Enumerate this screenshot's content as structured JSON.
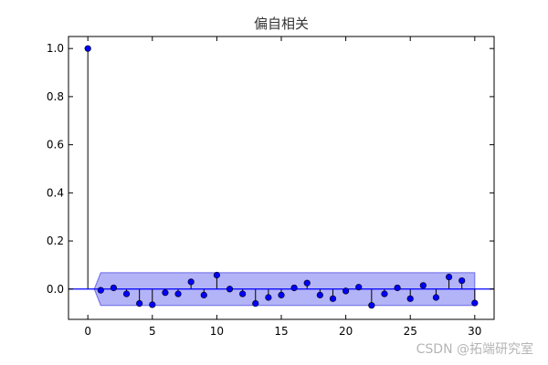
{
  "chart_data": {
    "type": "scatter",
    "style": "stem",
    "title": "偏自相关",
    "xlabel": "",
    "ylabel": "",
    "xlim": [
      -1.5,
      31.5
    ],
    "ylim": [
      -0.126,
      1.05
    ],
    "xticks": [
      0,
      5,
      10,
      15,
      20,
      25,
      30
    ],
    "yticks": [
      0.0,
      0.2,
      0.4,
      0.6,
      0.8,
      1.0
    ],
    "grid": false,
    "x": [
      0,
      1,
      2,
      3,
      4,
      5,
      6,
      7,
      8,
      9,
      10,
      11,
      12,
      13,
      14,
      15,
      16,
      17,
      18,
      19,
      20,
      21,
      22,
      23,
      24,
      25,
      26,
      27,
      28,
      29,
      30
    ],
    "values": [
      1.0,
      -0.005,
      0.005,
      -0.02,
      -0.06,
      -0.065,
      -0.015,
      -0.02,
      0.03,
      -0.025,
      0.058,
      0.0,
      -0.02,
      -0.06,
      -0.035,
      -0.025,
      0.005,
      0.025,
      -0.025,
      -0.04,
      -0.008,
      0.008,
      -0.068,
      -0.02,
      0.005,
      -0.04,
      0.015,
      -0.035,
      0.05,
      0.035,
      -0.058
    ],
    "confidence_interval": {
      "x_start": 1,
      "x_end": 30,
      "upper": 0.068,
      "lower": -0.068
    },
    "colors": {
      "marker": "#0000ff",
      "stem": "#000000",
      "baseline": "#0000ff",
      "band_fill": "#b3b3f8",
      "band_edge": "#6a6ae6",
      "axes": "#000000"
    }
  },
  "watermark": "CSDN @拓端研究室"
}
